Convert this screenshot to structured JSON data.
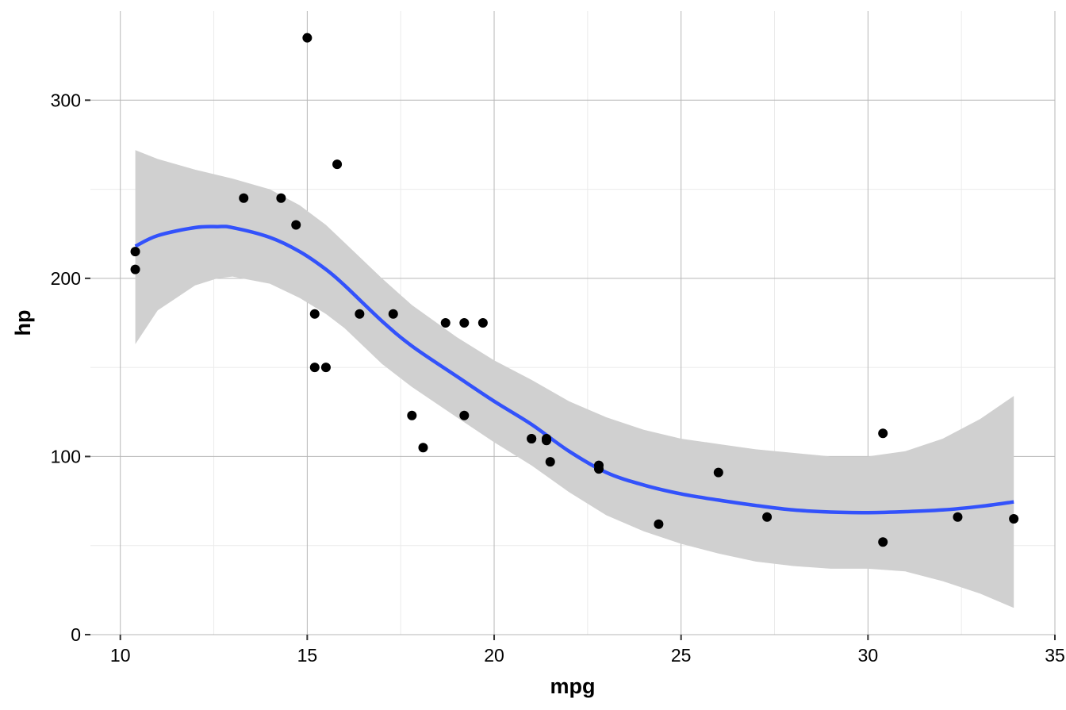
{
  "chart_data": {
    "type": "scatter",
    "title": "",
    "xlabel": "mpg",
    "ylabel": "hp",
    "xlim": [
      9.2,
      35
    ],
    "ylim": [
      0,
      350
    ],
    "x_ticks": [
      10,
      15,
      20,
      25,
      30,
      35
    ],
    "y_ticks": [
      0,
      100,
      200,
      300
    ],
    "x_tick_labels": [
      "10",
      "15",
      "20",
      "25",
      "30",
      "35"
    ],
    "y_tick_labels": [
      "0",
      "100",
      "200",
      "300"
    ],
    "grid": true,
    "legend": "none",
    "points": [
      {
        "x": 21.0,
        "y": 110
      },
      {
        "x": 21.0,
        "y": 110
      },
      {
        "x": 22.8,
        "y": 93
      },
      {
        "x": 21.4,
        "y": 110
      },
      {
        "x": 18.7,
        "y": 175
      },
      {
        "x": 18.1,
        "y": 105
      },
      {
        "x": 14.3,
        "y": 245
      },
      {
        "x": 24.4,
        "y": 62
      },
      {
        "x": 22.8,
        "y": 95
      },
      {
        "x": 19.2,
        "y": 123
      },
      {
        "x": 17.8,
        "y": 123
      },
      {
        "x": 16.4,
        "y": 180
      },
      {
        "x": 17.3,
        "y": 180
      },
      {
        "x": 15.2,
        "y": 180
      },
      {
        "x": 10.4,
        "y": 205
      },
      {
        "x": 10.4,
        "y": 215
      },
      {
        "x": 14.7,
        "y": 230
      },
      {
        "x": 32.4,
        "y": 66
      },
      {
        "x": 30.4,
        "y": 52
      },
      {
        "x": 33.9,
        "y": 65
      },
      {
        "x": 21.5,
        "y": 97
      },
      {
        "x": 15.5,
        "y": 150
      },
      {
        "x": 15.2,
        "y": 150
      },
      {
        "x": 13.3,
        "y": 245
      },
      {
        "x": 19.2,
        "y": 175
      },
      {
        "x": 27.3,
        "y": 66
      },
      {
        "x": 26.0,
        "y": 91
      },
      {
        "x": 30.4,
        "y": 113
      },
      {
        "x": 15.8,
        "y": 264
      },
      {
        "x": 19.7,
        "y": 175
      },
      {
        "x": 15.0,
        "y": 335
      },
      {
        "x": 21.4,
        "y": 109
      }
    ],
    "smooth": {
      "x": [
        10.4,
        11.0,
        12.0,
        12.6,
        13.0,
        14.0,
        14.8,
        15.5,
        16.0,
        17.0,
        17.8,
        19.0,
        20.0,
        21.0,
        22.0,
        23.0,
        24.0,
        25.0,
        26.0,
        27.0,
        28.0,
        29.0,
        30.0,
        31.0,
        32.0,
        33.0,
        33.9
      ],
      "y": [
        218,
        224,
        228.5,
        229,
        228.5,
        223,
        215,
        205,
        196,
        176,
        162,
        145,
        131,
        118,
        103,
        91,
        84,
        79,
        75.5,
        72.5,
        70,
        68.8,
        68.5,
        69,
        70,
        72,
        74.5
      ],
      "upper": [
        272,
        267,
        261,
        258,
        256,
        250,
        241,
        230,
        220,
        200,
        185,
        167,
        154,
        143,
        131,
        122,
        115,
        110,
        107,
        104,
        102,
        100,
        100,
        103,
        110,
        121,
        134
      ],
      "lower": [
        163,
        182,
        196,
        200,
        201,
        197,
        189,
        180,
        172,
        152,
        139,
        122,
        108,
        95,
        80,
        67,
        58,
        51,
        45.5,
        41,
        38.5,
        37,
        37,
        35.5,
        30,
        23,
        15
      ]
    },
    "colors": {
      "points": "#000000",
      "smooth_line": "#3352fb",
      "confidence_band": "#d0d0d0",
      "grid_major": "#b7b7b7",
      "grid_minor": "#ebebeb"
    }
  }
}
